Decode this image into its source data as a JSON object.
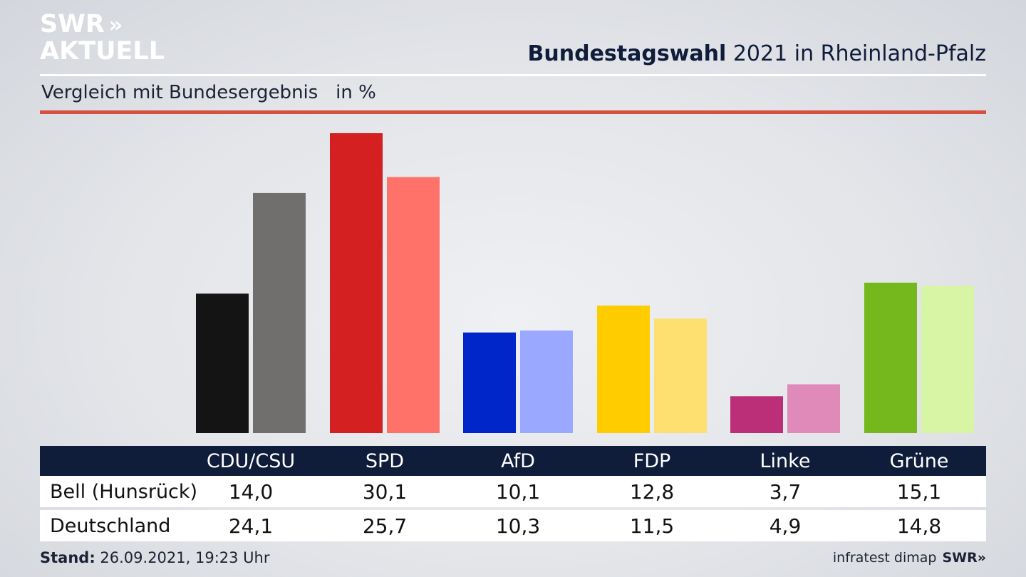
{
  "logo": {
    "line1": "SWR",
    "line1_chevrons": "»",
    "line2": "AKTUELL"
  },
  "header": {
    "title_bold": "Bundestagswahl",
    "title_rest": " 2021 in Rheinland-Pfalz",
    "subtitle": "Vergleich mit Bundesergebnis   in %"
  },
  "table": {
    "rows": [
      {
        "label": "Bell (Hunsrück)",
        "values": [
          "14,0",
          "30,1",
          "10,1",
          "12,8",
          "3,7",
          "15,1"
        ]
      },
      {
        "label": "Deutschland",
        "values": [
          "24,1",
          "25,7",
          "10,3",
          "11,5",
          "4,9",
          "14,8"
        ]
      }
    ]
  },
  "footer": {
    "stand_label": "Stand:",
    "stand_value": " 26.09.2021, 19:23 Uhr",
    "source": "infratest dimap",
    "brand": "SWR»"
  },
  "chart_data": {
    "type": "bar",
    "title": "Bundestagswahl 2021 in Rheinland-Pfalz",
    "subtitle": "Vergleich mit Bundesergebnis   in %",
    "categories": [
      "CDU/CSU",
      "SPD",
      "AfD",
      "FDP",
      "Linke",
      "Grüne"
    ],
    "series": [
      {
        "name": "Bell (Hunsrück)",
        "values": [
          14.0,
          30.1,
          10.1,
          12.8,
          3.7,
          15.1
        ],
        "colors": [
          "#141414",
          "#d42020",
          "#0025c8",
          "#ffcc00",
          "#bb2e78",
          "#74b81e"
        ]
      },
      {
        "name": "Deutschland",
        "values": [
          24.1,
          25.7,
          10.3,
          11.5,
          4.9,
          14.8
        ],
        "colors": [
          "#706f6e",
          "#ff7269",
          "#9aa9ff",
          "#fde070",
          "#e08ab9",
          "#d7f5a5"
        ]
      }
    ],
    "ylim": [
      0,
      30.1
    ],
    "grid": false,
    "legend": "none"
  },
  "colors": {
    "navy": "#0f1c3a",
    "accent_red": "#d6503f",
    "white": "#ffffff"
  }
}
